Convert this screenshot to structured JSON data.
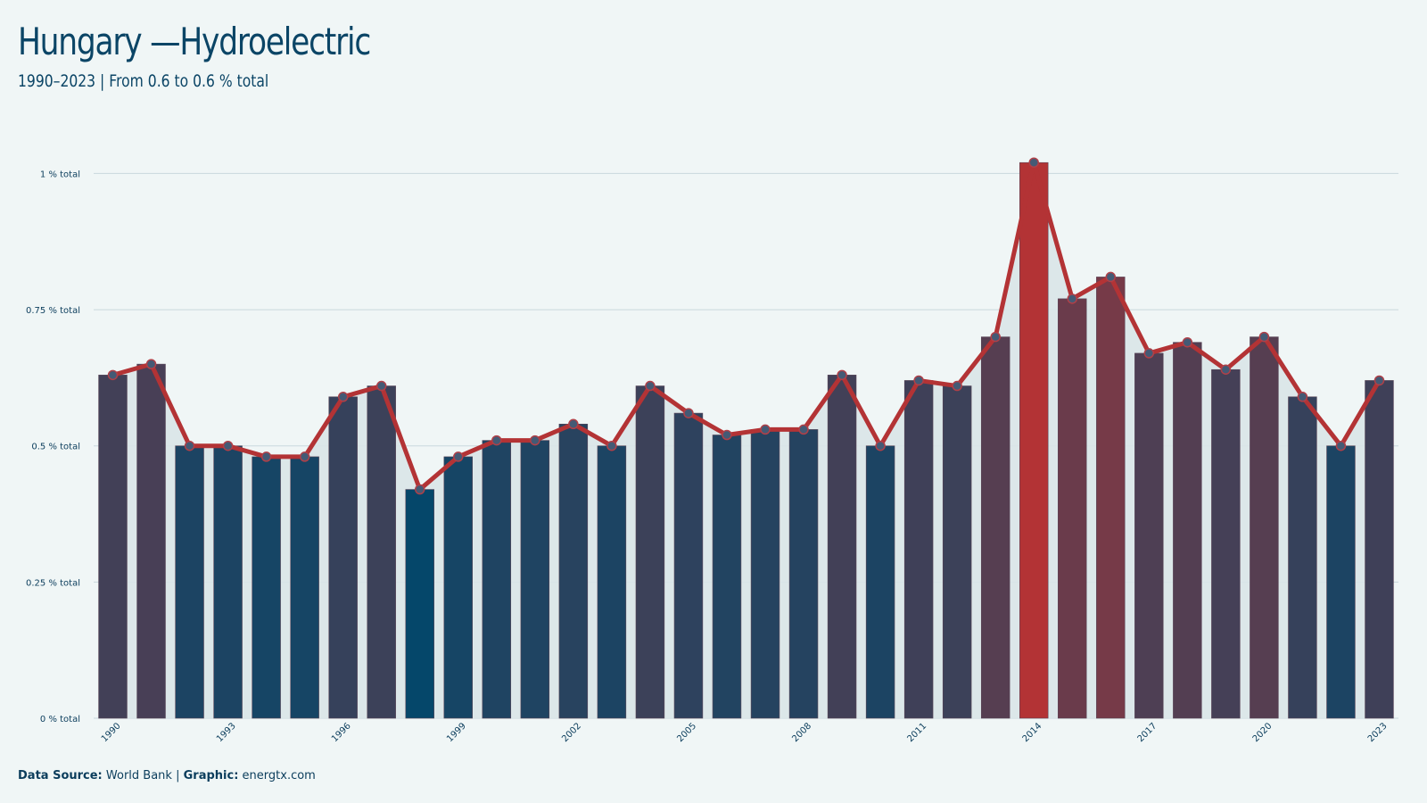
{
  "title": "Hungary —Hydroelectric",
  "subtitle": "1990–2023 | From 0.6 to 0.6 % total",
  "footer": {
    "source_label": "Data Source:",
    "source_value": "World Bank",
    "separator": "|",
    "graphic_label": "Graphic:",
    "graphic_value": "energtx.com"
  },
  "colors": {
    "low": "#05476a",
    "high": "#b33335",
    "line": "#b33335",
    "dot": "#445a75",
    "area": "#d9e6e8",
    "grid": "#c9d8dd"
  },
  "chart_data": {
    "type": "bar",
    "x": [
      1990,
      1991,
      1992,
      1993,
      1994,
      1995,
      1996,
      1997,
      1998,
      1999,
      2000,
      2001,
      2002,
      2003,
      2004,
      2005,
      2006,
      2007,
      2008,
      2009,
      2010,
      2011,
      2012,
      2013,
      2014,
      2015,
      2016,
      2017,
      2018,
      2019,
      2020,
      2021,
      2022,
      2023
    ],
    "values": [
      0.63,
      0.65,
      0.5,
      0.5,
      0.48,
      0.48,
      0.59,
      0.61,
      0.42,
      0.48,
      0.51,
      0.51,
      0.54,
      0.5,
      0.61,
      0.56,
      0.52,
      0.53,
      0.53,
      0.63,
      0.5,
      0.62,
      0.61,
      0.7,
      1.02,
      0.77,
      0.81,
      0.67,
      0.69,
      0.64,
      0.7,
      0.59,
      0.5,
      0.62
    ],
    "x_tick_labels": [
      "1990",
      "1993",
      "1996",
      "1999",
      "2002",
      "2005",
      "2008",
      "2011",
      "2014",
      "2017",
      "2020",
      "2023"
    ],
    "y_tick_labels": [
      "0 % total",
      "0.25 % total",
      "0.5 % total",
      "0.75 % total",
      "1 % total"
    ],
    "y_ticks": [
      0,
      0.25,
      0.5,
      0.75,
      1
    ],
    "ylim": [
      0,
      1.04
    ],
    "overlay": "line",
    "grid": true
  }
}
